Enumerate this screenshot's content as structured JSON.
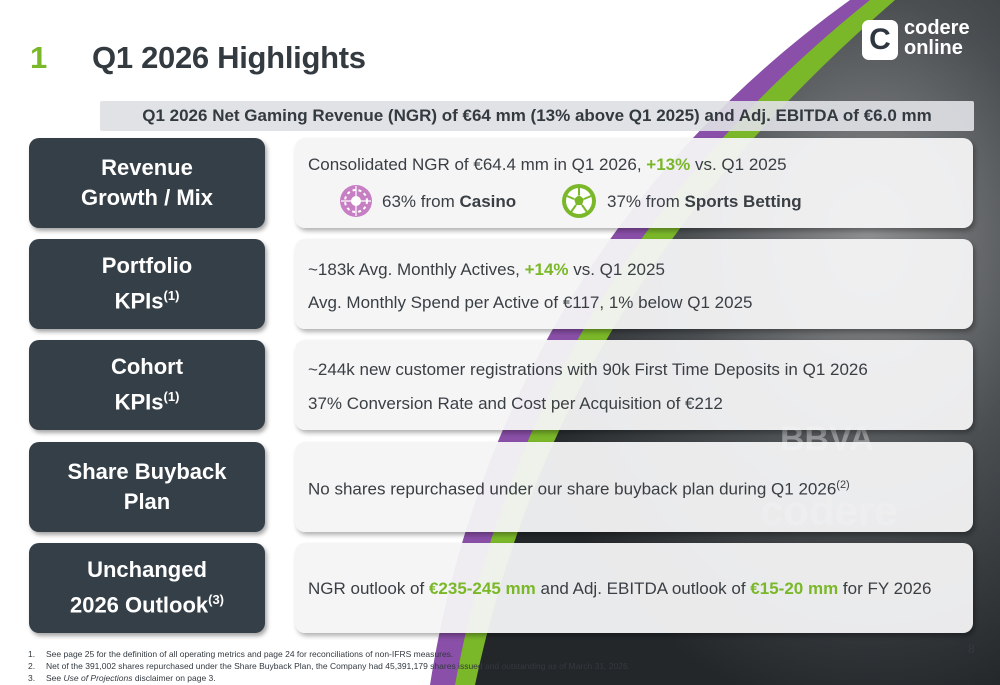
{
  "slide": {
    "number": "1",
    "title": "Q1 2026 Highlights",
    "page": "8"
  },
  "logo": {
    "badge": "C",
    "line1": "codere",
    "line2": "online"
  },
  "banner": "Q1 2026 Net Gaming Revenue (NGR) of €64 mm (13% above Q1 2025) and Adj. EBITDA of €6.0 mm",
  "rows": [
    {
      "label1": "Revenue",
      "label2": "Growth / Mix",
      "line1_pre": "Consolidated NGR of €64.4 mm in Q1 2026, ",
      "line1_hl": "+13%",
      "line1_post": " vs. Q1 2025",
      "casino_pre": "63% from ",
      "casino_bold": "Casino",
      "sports_pre": "37% from ",
      "sports_bold": "Sports Betting"
    },
    {
      "label1": "Portfolio",
      "label2": "KPIs",
      "label2_sup": "(1)",
      "line1_pre": "~183k Avg. Monthly Actives, ",
      "line1_hl": "+14%",
      "line1_post": " vs. Q1 2025",
      "line2": "Avg. Monthly Spend per Active of €117, 1% below Q1 2025"
    },
    {
      "label1": "Cohort",
      "label2": "KPIs",
      "label2_sup": "(1)",
      "line1": "~244k new customer registrations with 90k First Time Deposits in Q1 2026",
      "line2": "37% Conversion Rate and Cost per Acquisition of €212"
    },
    {
      "label1": "Share Buyback",
      "label2": "Plan",
      "line1": "No shares repurchased under our share buyback plan during Q1 2026",
      "line1_sup": "(2)"
    },
    {
      "label1": "Unchanged",
      "label2": "2026 Outlook",
      "label2_sup": "(3)",
      "line1_pre": "NGR outlook of ",
      "line1_hl": "€235-245 mm",
      "line1_mid": " and Adj. EBITDA outlook of ",
      "line1_hl2": "€15-20 mm",
      "line1_post": " for FY 2026"
    }
  ],
  "footnotes": [
    {
      "num": "1.",
      "text": "See page 25 for the definition of all operating metrics and page 24 for reconciliations of non-IFRS measures."
    },
    {
      "num": "2.",
      "text": "Net of the 391,002 shares repurchased under the Share Buyback Plan, the Company had 45,391,179 shares issued and outstanding as of March 31, 2026."
    },
    {
      "num": "3.",
      "pre": "See ",
      "italic": "Use of Projections",
      "post": " disclaimer on page 3."
    }
  ],
  "colors": {
    "accent_green": "#7bb829",
    "dark_slate": "#353f47",
    "purple": "#8a4fa8",
    "casino_pink": "#c77fc4"
  },
  "icons": [
    "roulette-chip-icon",
    "soccer-ball-icon"
  ],
  "photo_text": {
    "brand1": "BBVA",
    "brand2": "codere"
  }
}
